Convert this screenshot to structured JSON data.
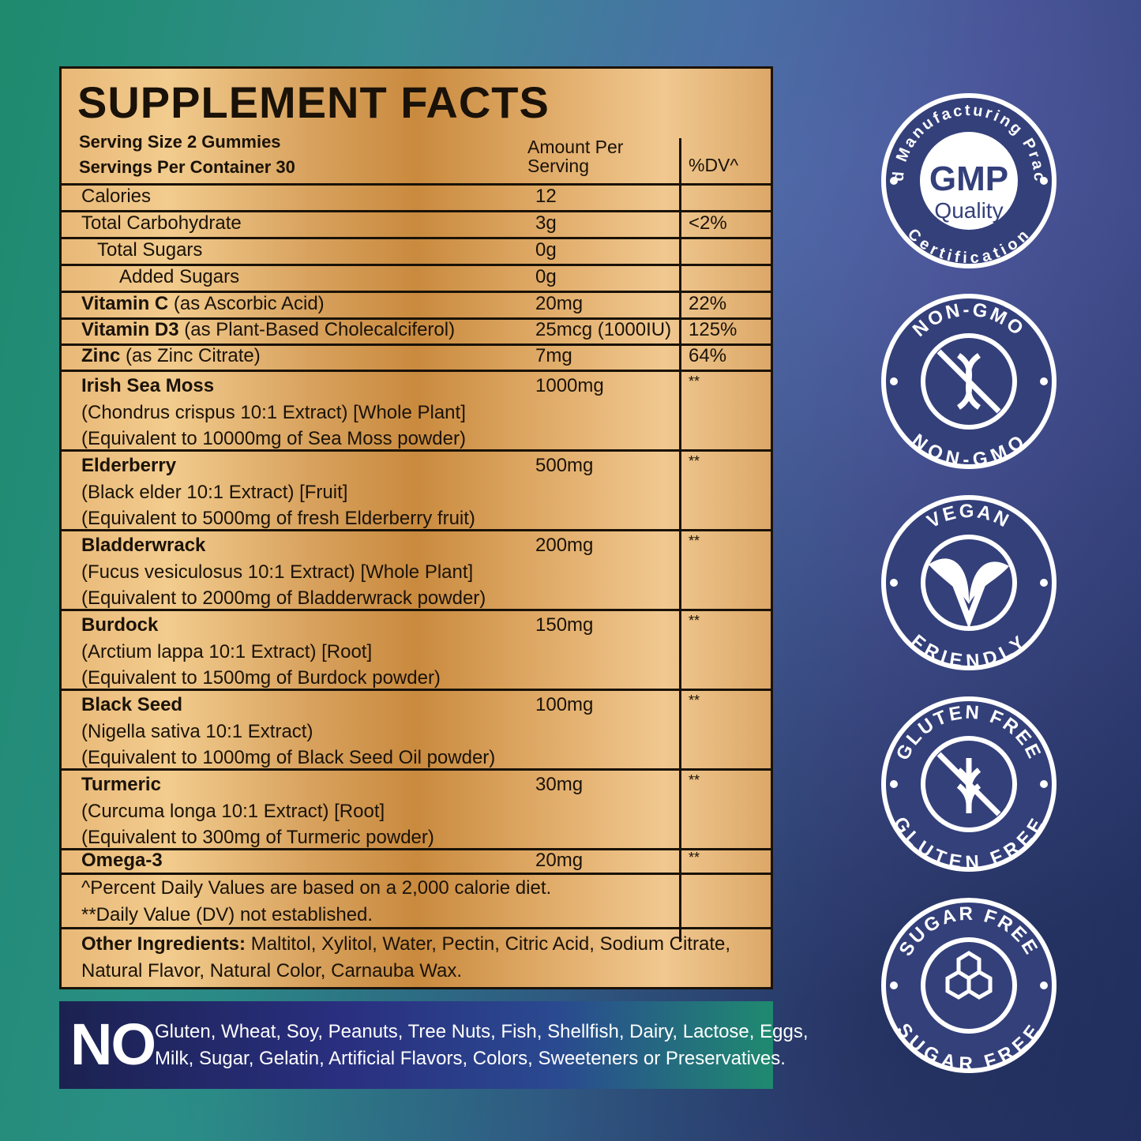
{
  "title": "SUPPLEMENT FACTS",
  "serving_size": "Serving Size 2 Gummies",
  "servings_per_container": "Servings Per Container 30",
  "col_amount_1": "Amount Per",
  "col_amount_2": "Serving",
  "col_dv": "%DV^",
  "simple_rows": [
    {
      "name": "Calories",
      "amount": "12",
      "dv": ""
    },
    {
      "name": "Total Carbohydrate",
      "amount": "3g",
      "dv": "<2%"
    },
    {
      "name": "Total Sugars",
      "amount": "0g",
      "dv": ""
    },
    {
      "name": "Added Sugars",
      "amount": "0g",
      "dv": ""
    }
  ],
  "vitamin_rows": [
    {
      "name": "Vitamin C",
      "source": " (as Ascorbic Acid)",
      "amount": "20mg",
      "dv": "22%"
    },
    {
      "name": "Vitamin D3",
      "source": " (as Plant-Based Cholecalciferol)",
      "amount": "25mcg (1000IU)",
      "dv": "125%"
    },
    {
      "name": "Zinc",
      "source": " (as Zinc Citrate)",
      "amount": "7mg",
      "dv": "64%"
    }
  ],
  "herb_rows": [
    {
      "name": "Irish Sea Moss",
      "line2": "(Chondrus crispus 10:1 Extract) [Whole Plant]",
      "line3": "(Equivalent to 10000mg of Sea Moss powder)",
      "amount": "1000mg",
      "dv": "**"
    },
    {
      "name": "Elderberry",
      "line2": "(Black elder 10:1 Extract) [Fruit]",
      "line3": "(Equivalent to 5000mg of fresh Elderberry fruit)",
      "amount": "500mg",
      "dv": "**"
    },
    {
      "name": "Bladderwrack",
      "line2": "(Fucus vesiculosus 10:1 Extract) [Whole Plant]",
      "line3": "(Equivalent to 2000mg of Bladderwrack powder)",
      "amount": "200mg",
      "dv": "**"
    },
    {
      "name": "Burdock",
      "line2": "(Arctium lappa 10:1 Extract) [Root]",
      "line3": "(Equivalent to 1500mg of Burdock powder)",
      "amount": "150mg",
      "dv": "**"
    },
    {
      "name": "Black Seed",
      "line2": "(Nigella sativa 10:1 Extract)",
      "line3": "(Equivalent to 1000mg of Black Seed Oil powder)",
      "amount": "100mg",
      "dv": "**"
    },
    {
      "name": "Turmeric",
      "line2": "(Curcuma longa 10:1 Extract) [Root]",
      "line3": "(Equivalent to 300mg of Turmeric powder)",
      "amount": "30mg",
      "dv": "**"
    }
  ],
  "omega": {
    "name": "Omega-3",
    "amount": "20mg",
    "dv": "**"
  },
  "footnote_1": "^Percent Daily Values are based on a 2,000 calorie diet.",
  "footnote_2": "**Daily Value (DV) not established.",
  "other_label": "Other Ingredients:",
  "other_text": " Maltitol, Xylitol, Water, Pectin, Citric Acid, Sodium Citrate,",
  "other_text_2": "Natural Flavor, Natural Color, Carnauba Wax.",
  "no_banner": {
    "no": "NO",
    "line1": "Gluten, Wheat, Soy, Peanuts, Tree Nuts, Fish, Shellfish, Dairy, Lactose, Eggs,",
    "line2": "Milk, Sugar, Gelatin, Artificial Flavors, Colors, Sweeteners or Preservatives."
  },
  "badges": {
    "gmp": {
      "ring_top": "Good Manufacturing Practice",
      "ring_bottom": "Certification",
      "center_1": "GMP",
      "center_2": "Quality"
    },
    "nongmo": {
      "ring_top": "NON-GMO",
      "ring_bottom": "NON-GMO",
      "icon": "dna-crossed-icon"
    },
    "vegan": {
      "ring_top": "VEGAN",
      "ring_bottom": "FRIENDLY",
      "icon": "leaf-v-icon"
    },
    "gluten": {
      "ring_top": "GLUTEN FREE",
      "ring_bottom": "GLUTEN FREE",
      "icon": "wheat-crossed-icon"
    },
    "sugar": {
      "ring_top": "SUGAR FREE",
      "ring_bottom": "SUGAR FREE",
      "icon": "sugar-cubes-icon"
    }
  },
  "colors": {
    "badge_fill": "#34407a",
    "panel_gold": "#d8a25e",
    "text": "#1a1208"
  }
}
